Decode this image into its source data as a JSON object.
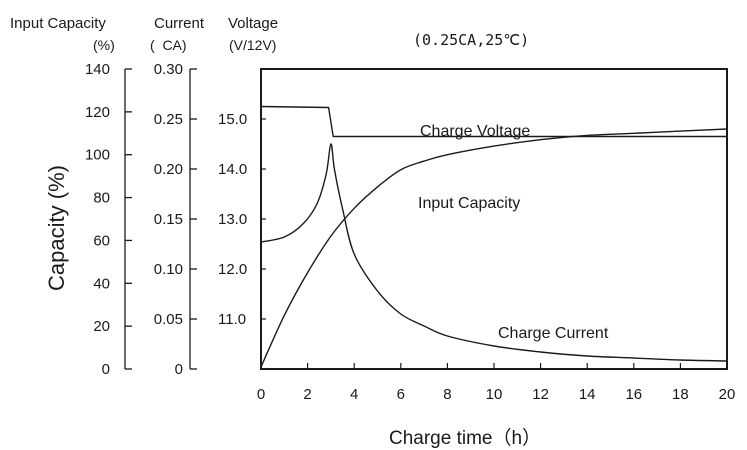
{
  "chart_data": {
    "type": "line",
    "condition": "(0.25CA,25℃)",
    "axis_headers": {
      "capacity": [
        "Input Capacity",
        "(%)"
      ],
      "current": [
        "Current",
        "(  CA)"
      ],
      "voltage": [
        "Voltage",
        "(V/12V)"
      ]
    },
    "ylabel": "Capacity (%)",
    "xlabel": "Charge time（h）",
    "x_ticks": [
      "0",
      "2",
      "4",
      "6",
      "8",
      "10",
      "12",
      "14",
      "16",
      "18",
      "20"
    ],
    "xlim": [
      0,
      20
    ],
    "y_axes": [
      {
        "name": "capacity",
        "range": [
          0,
          140
        ],
        "ticks": [
          "0",
          "20",
          "40",
          "60",
          "80",
          "100",
          "120",
          "140"
        ]
      },
      {
        "name": "current",
        "range": [
          0,
          0.3
        ],
        "ticks": [
          "0",
          "0.05",
          "0.10",
          "0.15",
          "0.20",
          "0.25",
          "0.30"
        ]
      },
      {
        "name": "voltage",
        "range": [
          10.0,
          16.0
        ],
        "ticks": [
          "11.0",
          "12.0",
          "13.0",
          "14.0",
          "15.0"
        ]
      }
    ],
    "series": [
      {
        "name": "Charge Voltage",
        "axis": "voltage",
        "points": [
          [
            0,
            15.25
          ],
          [
            2.9,
            15.23
          ],
          [
            3.1,
            14.65
          ],
          [
            20,
            14.65
          ]
        ]
      },
      {
        "name": "Input Capacity",
        "axis": "capacity",
        "points": [
          [
            0,
            1
          ],
          [
            1,
            25
          ],
          [
            2,
            45
          ],
          [
            3,
            62
          ],
          [
            4,
            75
          ],
          [
            5,
            85
          ],
          [
            6,
            93
          ],
          [
            7,
            97
          ],
          [
            8,
            100
          ],
          [
            10,
            104
          ],
          [
            12,
            107
          ],
          [
            14,
            109
          ],
          [
            16,
            110
          ],
          [
            18,
            111
          ],
          [
            20,
            112
          ]
        ]
      },
      {
        "name": "Charge Current",
        "axis": "current",
        "points": [
          [
            0,
            0.127
          ],
          [
            1,
            0.132
          ],
          [
            1.8,
            0.145
          ],
          [
            2.4,
            0.165
          ],
          [
            2.8,
            0.195
          ],
          [
            3.0,
            0.225
          ],
          [
            3.15,
            0.2
          ],
          [
            3.5,
            0.16
          ],
          [
            4,
            0.115
          ],
          [
            5,
            0.078
          ],
          [
            6,
            0.055
          ],
          [
            7,
            0.043
          ],
          [
            8,
            0.033
          ],
          [
            10,
            0.023
          ],
          [
            12,
            0.017
          ],
          [
            14,
            0.013
          ],
          [
            16,
            0.011
          ],
          [
            18,
            0.009
          ],
          [
            20,
            0.008
          ]
        ]
      }
    ]
  }
}
